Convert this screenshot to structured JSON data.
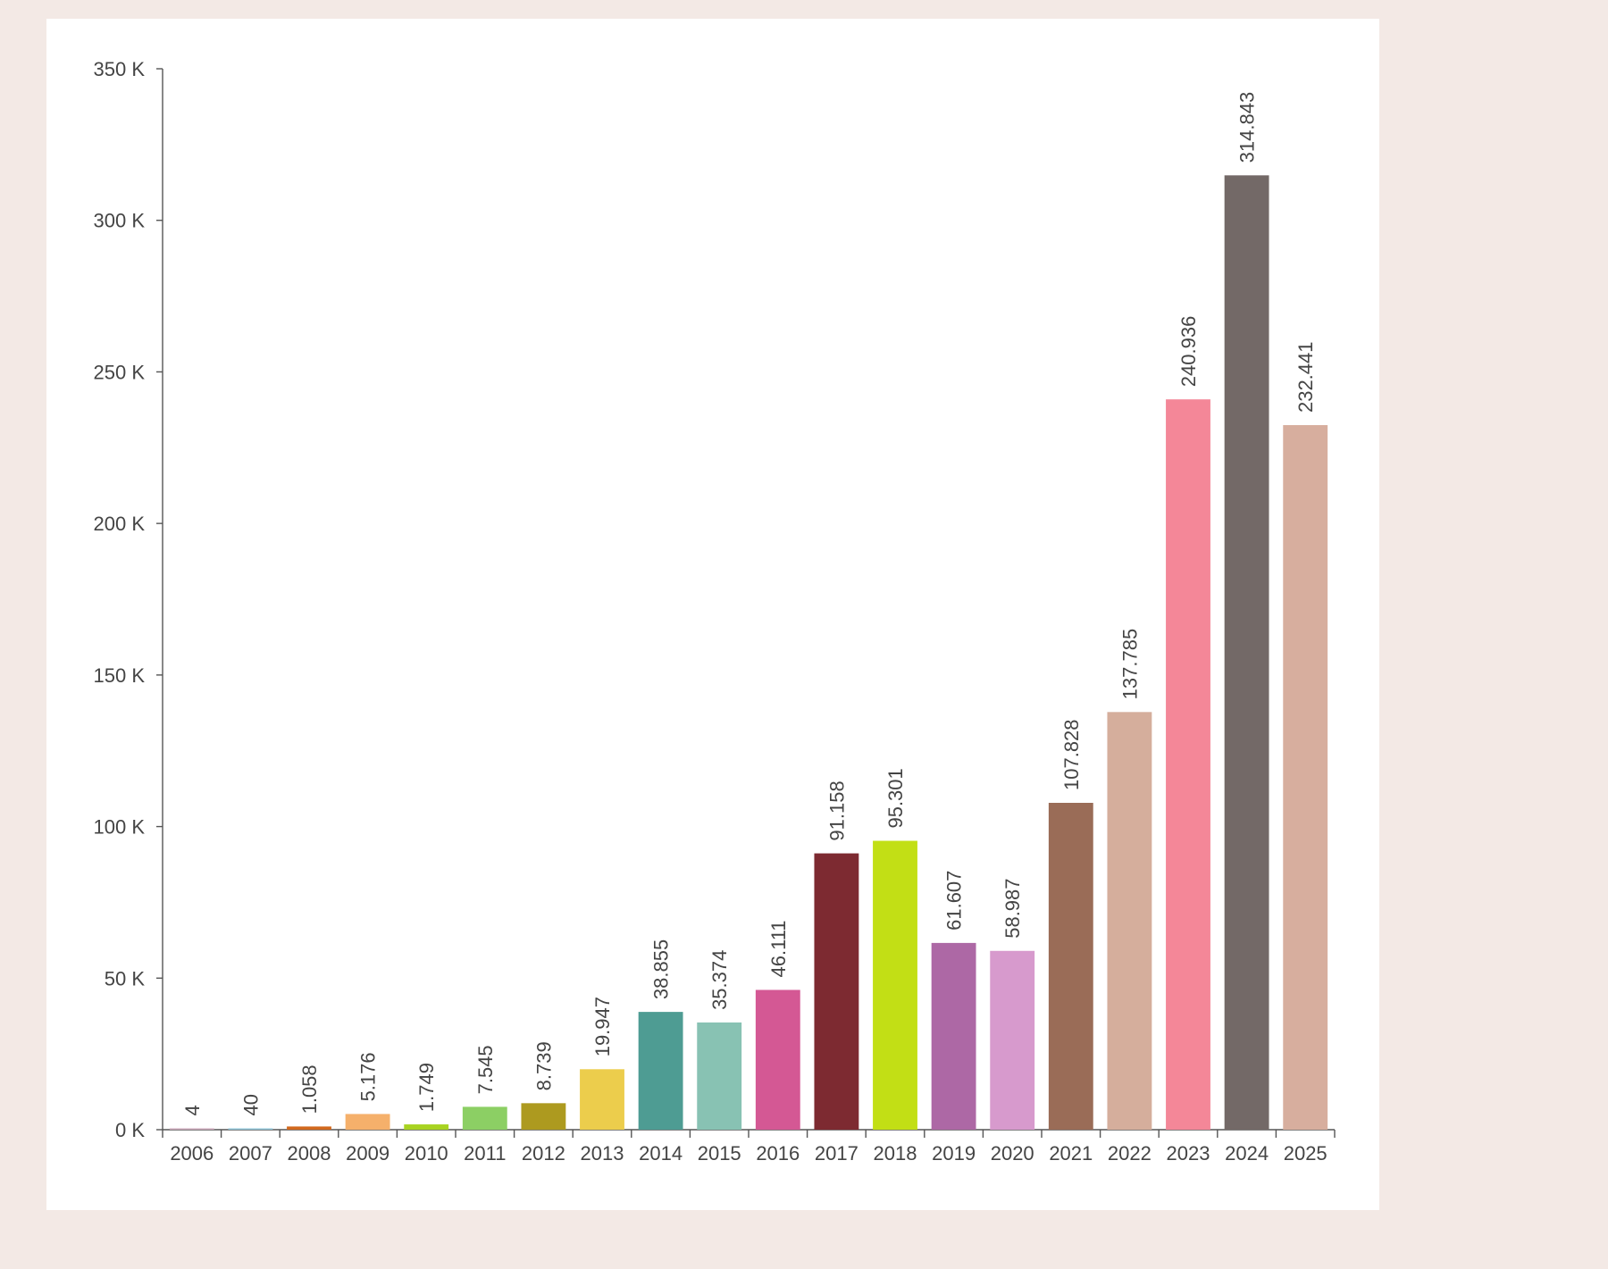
{
  "chart_data": {
    "type": "bar",
    "title": "",
    "xlabel": "",
    "ylabel": "",
    "ylim": [
      0,
      350000
    ],
    "grid": false,
    "legend": "none",
    "y_ticks": [
      {
        "value": 0,
        "label": "0 K"
      },
      {
        "value": 50000,
        "label": "50 K"
      },
      {
        "value": 100000,
        "label": "100 K"
      },
      {
        "value": 150000,
        "label": "150 K"
      },
      {
        "value": 200000,
        "label": "200 K"
      },
      {
        "value": 250000,
        "label": "250 K"
      },
      {
        "value": 300000,
        "label": "300 K"
      },
      {
        "value": 350000,
        "label": "350 K"
      }
    ],
    "categories": [
      "2006",
      "2007",
      "2008",
      "2009",
      "2010",
      "2011",
      "2012",
      "2013",
      "2014",
      "2015",
      "2016",
      "2017",
      "2018",
      "2019",
      "2020",
      "2021",
      "2022",
      "2023",
      "2024",
      "2025"
    ],
    "values": [
      4,
      40,
      1058,
      5176,
      1749,
      7545,
      8739,
      19947,
      38855,
      35374,
      46111,
      91158,
      95301,
      61607,
      58987,
      107828,
      137785,
      240936,
      314843,
      232441
    ],
    "value_labels": [
      "4",
      "40",
      "1.058",
      "5.176",
      "1.749",
      "7.545",
      "8.739",
      "19.947",
      "38.855",
      "35.374",
      "46.111",
      "91.158",
      "95.301",
      "61.607",
      "58.987",
      "107.828",
      "137.785",
      "240.936",
      "314.843",
      "232.441"
    ],
    "colors": [
      "#c9a6b8",
      "#8fc3d6",
      "#d2691e",
      "#f5b06b",
      "#a8d321",
      "#8ccf64",
      "#ad9a1f",
      "#eccd4c",
      "#4e9c93",
      "#88c2b3",
      "#d45894",
      "#7d2a31",
      "#c2df15",
      "#ad68a5",
      "#d79acd",
      "#9a6c57",
      "#d5ae9c",
      "#f48798",
      "#736967",
      "#d7ae9e"
    ]
  }
}
